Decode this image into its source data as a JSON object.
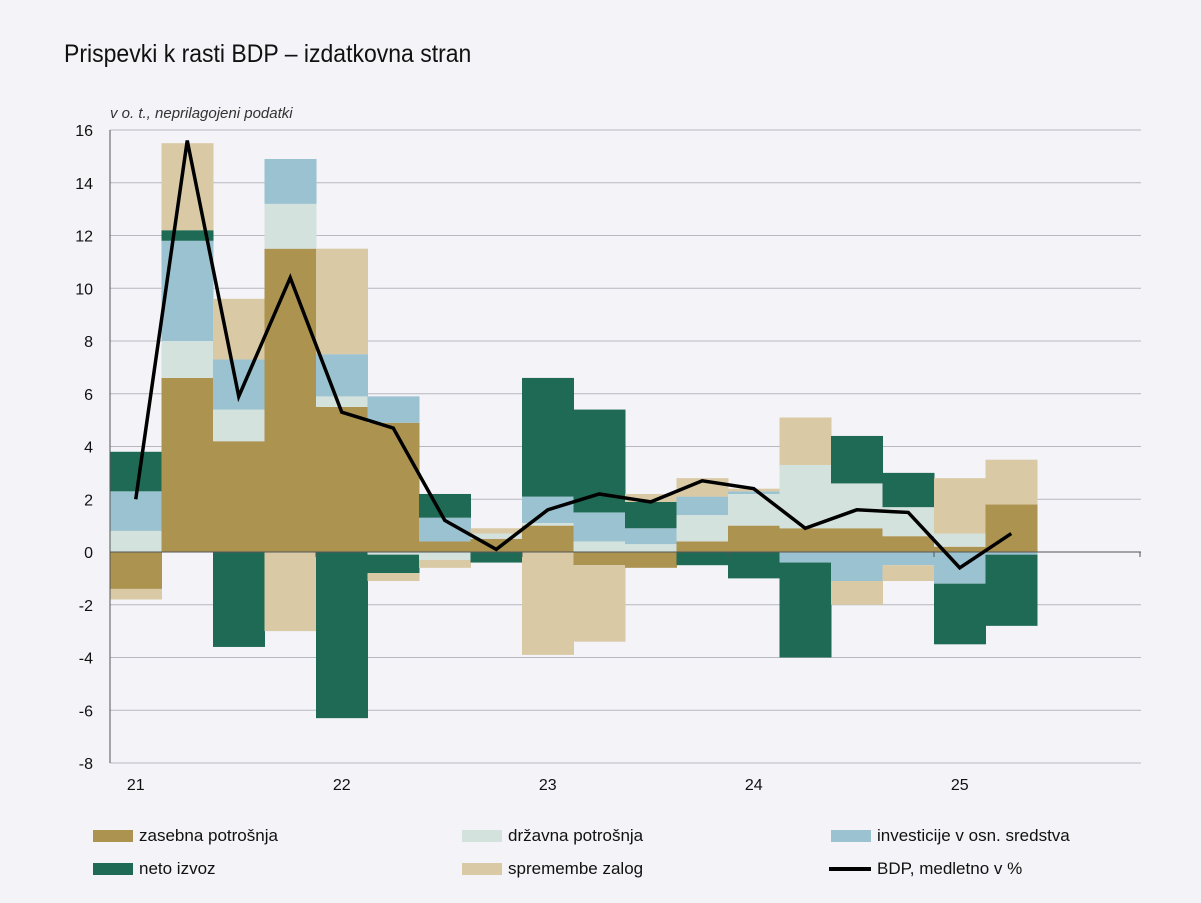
{
  "chart_data": {
    "type": "bar",
    "title": "Prispevki k rasti BDP – izdatkovna stran",
    "unit_label": "v o. t., neprilagojeni podatki",
    "ylim": [
      -8,
      16
    ],
    "y_ticks": [
      -8,
      -6,
      -4,
      -2,
      0,
      2,
      4,
      6,
      8,
      10,
      12,
      14,
      16
    ],
    "x_tick_labels": [
      "21",
      "22",
      "23",
      "24",
      "25"
    ],
    "grid": true,
    "legend_position": "bottom",
    "categories": [
      "21Q1",
      "21Q2",
      "21Q3",
      "21Q4",
      "22Q1",
      "22Q2",
      "22Q3",
      "22Q4",
      "23Q1",
      "23Q2",
      "23Q3",
      "23Q4",
      "24Q1",
      "24Q2",
      "24Q3",
      "24Q4",
      "25Q1",
      "25Q2"
    ],
    "series": [
      {
        "name": "zasebna potrošnja",
        "color": "#ad9350",
        "values": [
          -1.4,
          6.6,
          4.2,
          11.5,
          5.5,
          4.9,
          0.4,
          0.5,
          1.0,
          -0.5,
          -0.6,
          0.4,
          1.0,
          0.9,
          0.9,
          0.6,
          0.2,
          1.8
        ]
      },
      {
        "name": "državna potrošnja",
        "color": "#d4e2dd",
        "values": [
          0.8,
          1.4,
          1.2,
          1.7,
          0.4,
          -0.1,
          -0.3,
          0.2,
          0.1,
          0.4,
          0.3,
          1.0,
          1.2,
          2.4,
          1.7,
          1.1,
          0.5,
          0.0
        ]
      },
      {
        "name": "investicije v osn. sredstva",
        "color": "#9ac2d0",
        "values": [
          1.5,
          3.8,
          1.9,
          1.7,
          1.6,
          1.0,
          0.9,
          0.0,
          1.0,
          1.1,
          0.6,
          0.7,
          0.1,
          -0.4,
          -1.1,
          -0.5,
          -1.2,
          -0.1
        ]
      },
      {
        "name": "neto izvoz",
        "color": "#1f6a55",
        "values": [
          1.5,
          0.4,
          -3.6,
          0.0,
          -6.3,
          -0.7,
          0.9,
          -0.4,
          4.5,
          3.9,
          1.0,
          -0.5,
          -1.0,
          -3.6,
          1.8,
          1.3,
          -2.3,
          -2.7
        ]
      },
      {
        "name": "spremembe zalog",
        "color": "#d9c9a5",
        "values": [
          -0.4,
          3.3,
          2.3,
          -3.0,
          4.0,
          -0.3,
          -0.3,
          0.2,
          -3.9,
          -2.9,
          0.3,
          0.7,
          0.1,
          1.8,
          -0.9,
          -0.6,
          2.1,
          1.7
        ]
      }
    ],
    "line": {
      "name": "BDP, medletno v %",
      "color": "#000000",
      "values": [
        2.0,
        15.6,
        5.9,
        10.4,
        5.3,
        4.7,
        1.2,
        0.1,
        1.6,
        2.2,
        1.9,
        2.7,
        2.4,
        0.9,
        1.6,
        1.5,
        -0.6,
        0.7
      ]
    }
  },
  "legend_items": [
    {
      "label": "zasebna potrošnja",
      "color": "#ad9350",
      "kind": "bar"
    },
    {
      "label": "državna potrošnja",
      "color": "#d4e2dd",
      "kind": "bar"
    },
    {
      "label": "investicije v osn. sredstva",
      "color": "#9ac2d0",
      "kind": "bar"
    },
    {
      "label": "neto izvoz",
      "color": "#1f6a55",
      "kind": "bar"
    },
    {
      "label": "spremembe zalog",
      "color": "#d9c9a5",
      "kind": "bar"
    },
    {
      "label": "BDP, medletno v %",
      "color": "#000000",
      "kind": "line"
    }
  ]
}
